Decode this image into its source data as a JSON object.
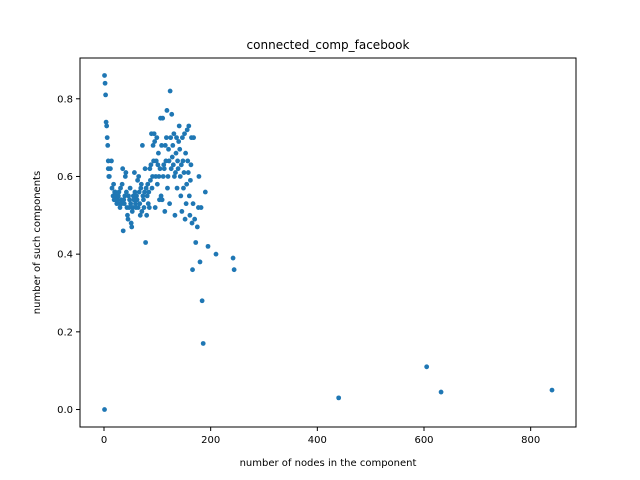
{
  "chart_data": {
    "type": "scatter",
    "title": "connected_comp_facebook",
    "xlabel": "number of nodes in the component",
    "ylabel": "number of such components",
    "xlim": [
      -45,
      885
    ],
    "ylim": [
      -0.045,
      0.905
    ],
    "xticks": [
      0,
      200,
      400,
      600,
      800
    ],
    "yticks": [
      0.0,
      0.2,
      0.4,
      0.6,
      0.8
    ],
    "xtick_labels": [
      "0",
      "200",
      "400",
      "600",
      "800"
    ],
    "ytick_labels": [
      "0.0",
      "0.2",
      "0.4",
      "0.6",
      "0.8"
    ],
    "grid": false,
    "marker_color": "#1f77b4",
    "points": [
      [
        1,
        0.86
      ],
      [
        2,
        0.84
      ],
      [
        3,
        0.81
      ],
      [
        4,
        0.74
      ],
      [
        5,
        0.73
      ],
      [
        6,
        0.7
      ],
      [
        7,
        0.68
      ],
      [
        8,
        0.62
      ],
      [
        8,
        0.64
      ],
      [
        9,
        0.6
      ],
      [
        10,
        0.6
      ],
      [
        12,
        0.62
      ],
      [
        14,
        0.64
      ],
      [
        1,
        0.0
      ],
      [
        15,
        0.57
      ],
      [
        17,
        0.55
      ],
      [
        18,
        0.58
      ],
      [
        19,
        0.54
      ],
      [
        20,
        0.56
      ],
      [
        21,
        0.56
      ],
      [
        22,
        0.55
      ],
      [
        23,
        0.54
      ],
      [
        24,
        0.53
      ],
      [
        25,
        0.54
      ],
      [
        26,
        0.55
      ],
      [
        27,
        0.55
      ],
      [
        28,
        0.56
      ],
      [
        29,
        0.53
      ],
      [
        30,
        0.52
      ],
      [
        31,
        0.57
      ],
      [
        32,
        0.54
      ],
      [
        33,
        0.53
      ],
      [
        34,
        0.58
      ],
      [
        35,
        0.62
      ],
      [
        36,
        0.46
      ],
      [
        37,
        0.54
      ],
      [
        38,
        0.53
      ],
      [
        39,
        0.55
      ],
      [
        40,
        0.6
      ],
      [
        41,
        0.61
      ],
      [
        42,
        0.56
      ],
      [
        43,
        0.52
      ],
      [
        44,
        0.5
      ],
      [
        45,
        0.49
      ],
      [
        46,
        0.55
      ],
      [
        47,
        0.52
      ],
      [
        48,
        0.54
      ],
      [
        49,
        0.57
      ],
      [
        50,
        0.53
      ],
      [
        51,
        0.48
      ],
      [
        52,
        0.47
      ],
      [
        53,
        0.51
      ],
      [
        54,
        0.52
      ],
      [
        55,
        0.55
      ],
      [
        56,
        0.54
      ],
      [
        57,
        0.61
      ],
      [
        58,
        0.56
      ],
      [
        59,
        0.53
      ],
      [
        60,
        0.52
      ],
      [
        61,
        0.55
      ],
      [
        62,
        0.54
      ],
      [
        63,
        0.59
      ],
      [
        64,
        0.52
      ],
      [
        65,
        0.6
      ],
      [
        66,
        0.56
      ],
      [
        67,
        0.53
      ],
      [
        68,
        0.5
      ],
      [
        69,
        0.57
      ],
      [
        70,
        0.58
      ],
      [
        71,
        0.51
      ],
      [
        72,
        0.68
      ],
      [
        73,
        0.55
      ],
      [
        74,
        0.54
      ],
      [
        75,
        0.52
      ],
      [
        76,
        0.56
      ],
      [
        77,
        0.62
      ],
      [
        78,
        0.43
      ],
      [
        79,
        0.57
      ],
      [
        80,
        0.5
      ],
      [
        81,
        0.55
      ],
      [
        82,
        0.58
      ],
      [
        83,
        0.53
      ],
      [
        84,
        0.56
      ],
      [
        85,
        0.52
      ],
      [
        86,
        0.62
      ],
      [
        87,
        0.59
      ],
      [
        88,
        0.63
      ],
      [
        89,
        0.71
      ],
      [
        90,
        0.57
      ],
      [
        91,
        0.6
      ],
      [
        92,
        0.68
      ],
      [
        93,
        0.64
      ],
      [
        94,
        0.71
      ],
      [
        95,
        0.69
      ],
      [
        96,
        0.52
      ],
      [
        97,
        0.6
      ],
      [
        98,
        0.64
      ],
      [
        99,
        0.7
      ],
      [
        100,
        0.58
      ],
      [
        101,
        0.63
      ],
      [
        102,
        0.66
      ],
      [
        103,
        0.6
      ],
      [
        104,
        0.54
      ],
      [
        105,
        0.62
      ],
      [
        106,
        0.75
      ],
      [
        107,
        0.55
      ],
      [
        108,
        0.68
      ],
      [
        109,
        0.54
      ],
      [
        110,
        0.75
      ],
      [
        111,
        0.6
      ],
      [
        112,
        0.63
      ],
      [
        113,
        0.62
      ],
      [
        114,
        0.51
      ],
      [
        115,
        0.68
      ],
      [
        116,
        0.64
      ],
      [
        117,
        0.7
      ],
      [
        118,
        0.77
      ],
      [
        119,
        0.57
      ],
      [
        120,
        0.6
      ],
      [
        121,
        0.67
      ],
      [
        122,
        0.64
      ],
      [
        123,
        0.53
      ],
      [
        124,
        0.82
      ],
      [
        125,
        0.7
      ],
      [
        126,
        0.62
      ],
      [
        127,
        0.76
      ],
      [
        128,
        0.65
      ],
      [
        129,
        0.68
      ],
      [
        130,
        0.63
      ],
      [
        131,
        0.71
      ],
      [
        132,
        0.6
      ],
      [
        133,
        0.5
      ],
      [
        134,
        0.61
      ],
      [
        135,
        0.66
      ],
      [
        136,
        0.7
      ],
      [
        137,
        0.57
      ],
      [
        138,
        0.64
      ],
      [
        139,
        0.62
      ],
      [
        140,
        0.69
      ],
      [
        141,
        0.73
      ],
      [
        142,
        0.67
      ],
      [
        143,
        0.6
      ],
      [
        144,
        0.55
      ],
      [
        145,
        0.63
      ],
      [
        146,
        0.51
      ],
      [
        147,
        0.7
      ],
      [
        148,
        0.64
      ],
      [
        149,
        0.57
      ],
      [
        150,
        0.61
      ],
      [
        151,
        0.71
      ],
      [
        152,
        0.49
      ],
      [
        153,
        0.66
      ],
      [
        154,
        0.53
      ],
      [
        155,
        0.58
      ],
      [
        156,
        0.72
      ],
      [
        157,
        0.64
      ],
      [
        158,
        0.61
      ],
      [
        159,
        0.73
      ],
      [
        160,
        0.55
      ],
      [
        161,
        0.5
      ],
      [
        162,
        0.59
      ],
      [
        163,
        0.63
      ],
      [
        164,
        0.7
      ],
      [
        165,
        0.48
      ],
      [
        166,
        0.36
      ],
      [
        167,
        0.53
      ],
      [
        168,
        0.7
      ],
      [
        170,
        0.49
      ],
      [
        172,
        0.43
      ],
      [
        175,
        0.47
      ],
      [
        177,
        0.52
      ],
      [
        178,
        0.6
      ],
      [
        180,
        0.38
      ],
      [
        182,
        0.52
      ],
      [
        184,
        0.28
      ],
      [
        186,
        0.17
      ],
      [
        190,
        0.56
      ],
      [
        195,
        0.42
      ],
      [
        210,
        0.4
      ],
      [
        242,
        0.39
      ],
      [
        244,
        0.36
      ],
      [
        440,
        0.03
      ],
      [
        605,
        0.11
      ],
      [
        632,
        0.045
      ],
      [
        840,
        0.05
      ]
    ]
  }
}
